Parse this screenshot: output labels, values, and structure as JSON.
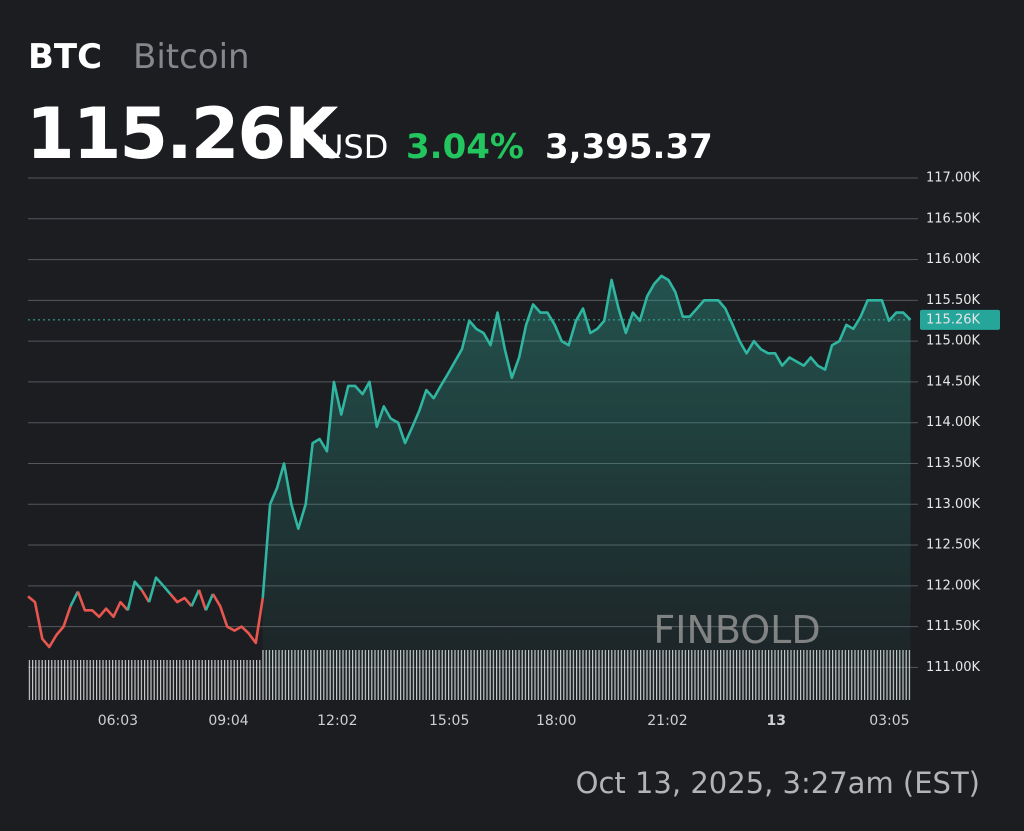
{
  "header": {
    "symbol": "BTC",
    "name": "Bitcoin",
    "price": "115.26K",
    "currency": "USD",
    "change_percent": "3.04%",
    "change": "3,395.37"
  },
  "timestamp": "Oct 13, 2025, 3:27am (EST)",
  "watermark": "FINBOLD",
  "chart_data": {
    "type": "line",
    "x": [
      3.6,
      3.79,
      3.99,
      4.18,
      4.38,
      4.57,
      4.76,
      4.96,
      5.15,
      5.35,
      5.54,
      5.73,
      5.93,
      6.12,
      6.32,
      6.51,
      6.7,
      6.9,
      7.09,
      7.29,
      7.48,
      7.67,
      7.87,
      8.06,
      8.26,
      8.45,
      8.64,
      8.84,
      9.03,
      9.23,
      9.42,
      9.61,
      9.81,
      10.0,
      10.2,
      10.39,
      10.58,
      10.78,
      10.97,
      11.17,
      11.36,
      11.55,
      11.75,
      11.94,
      12.14,
      12.33,
      12.52,
      12.72,
      12.91,
      13.11,
      13.3,
      13.49,
      13.69,
      13.88,
      14.08,
      14.27,
      14.46,
      14.66,
      14.85,
      15.05,
      15.24,
      15.43,
      15.63,
      15.82,
      16.02,
      16.21,
      16.4,
      16.6,
      16.79,
      16.99,
      17.18,
      17.37,
      17.57,
      17.76,
      17.96,
      18.15,
      18.34,
      18.54,
      18.73,
      18.93,
      19.12,
      19.31,
      19.51,
      19.7,
      19.9,
      20.09,
      20.28,
      20.48,
      20.67,
      20.87,
      21.06,
      21.25,
      21.45,
      21.64,
      21.84,
      22.03,
      22.22,
      22.42,
      22.61,
      22.81,
      23.0,
      23.19,
      23.39,
      23.58,
      23.78,
      23.97,
      24.16,
      24.36,
      24.55,
      24.75,
      24.94,
      25.13,
      25.33,
      25.52,
      25.72,
      25.91,
      26.1,
      26.3,
      26.49,
      26.69,
      26.88,
      27.07,
      27.27,
      27.46,
      27.66
    ],
    "values": [
      111870,
      111800,
      111350,
      111250,
      111400,
      111500,
      111750,
      111930,
      111700,
      111700,
      111620,
      111720,
      111620,
      111800,
      111700,
      112050,
      111950,
      111800,
      112100,
      112000,
      111900,
      111800,
      111850,
      111750,
      111950,
      111700,
      111900,
      111750,
      111500,
      111450,
      111500,
      111420,
      111300,
      111850,
      113000,
      113200,
      113500,
      113000,
      112700,
      113000,
      113750,
      113800,
      113650,
      114500,
      114100,
      114450,
      114450,
      114350,
      114500,
      113950,
      114200,
      114050,
      114000,
      113750,
      113950,
      114150,
      114400,
      114300,
      114450,
      114600,
      114750,
      114900,
      115250,
      115150,
      115100,
      114950,
      115350,
      114900,
      114550,
      114800,
      115200,
      115450,
      115350,
      115350,
      115200,
      115000,
      114950,
      115250,
      115400,
      115100,
      115150,
      115250,
      115750,
      115400,
      115100,
      115350,
      115250,
      115550,
      115700,
      115800,
      115750,
      115600,
      115300,
      115300,
      115400,
      115500,
      115500,
      115500,
      115400,
      115200,
      115000,
      114850,
      115000,
      114900,
      114850,
      114850,
      114700,
      114800,
      114750,
      114700,
      114800,
      114700,
      114650,
      114950,
      115000,
      115200,
      115150,
      115300,
      115500,
      115500,
      115500,
      115250,
      115350,
      115350,
      115260
    ],
    "up_color": "#2fb5a0",
    "down_color": "#e8574f",
    "last": {
      "value": 115260,
      "label": "115.26K"
    },
    "xlim": [
      3.6,
      27.7
    ],
    "xticks": [
      {
        "value": 6.05,
        "label": "06:03"
      },
      {
        "value": 9.067,
        "label": "09:04"
      },
      {
        "value": 12.033,
        "label": "12:02"
      },
      {
        "value": 15.083,
        "label": "15:05"
      },
      {
        "value": 18,
        "label": "18:00"
      },
      {
        "value": 21.033,
        "label": "21:02"
      },
      {
        "value": 24,
        "label": "13"
      },
      {
        "value": 27.083,
        "label": "03:05"
      }
    ],
    "ylim": [
      110600,
      117000
    ],
    "yticks": [
      {
        "value": 111000,
        "label": "111.00K"
      },
      {
        "value": 111500,
        "label": "111.50K"
      },
      {
        "value": 112000,
        "label": "112.00K"
      },
      {
        "value": 112500,
        "label": "112.50K"
      },
      {
        "value": 113000,
        "label": "113.00K"
      },
      {
        "value": 113500,
        "label": "113.50K"
      },
      {
        "value": 114000,
        "label": "114.00K"
      },
      {
        "value": 114500,
        "label": "114.50K"
      },
      {
        "value": 115000,
        "label": "115.00K"
      },
      {
        "value": 115500,
        "label": "115.50K"
      },
      {
        "value": 116000,
        "label": "116.00K"
      },
      {
        "value": 116500,
        "label": "116.50K"
      },
      {
        "value": 117000,
        "label": "117.00K"
      }
    ],
    "grid": true
  }
}
